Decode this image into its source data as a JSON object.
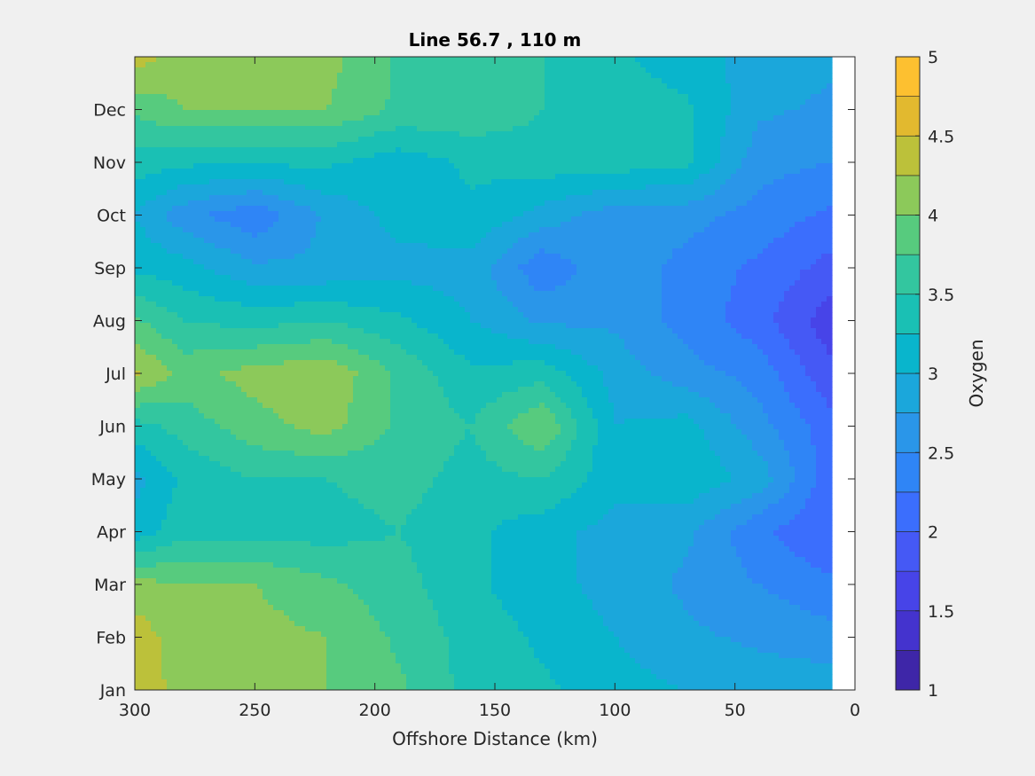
{
  "chart_data": {
    "type": "heatmap",
    "subtype": "filled-contour",
    "title": "Line 56.7 , 110 m",
    "xlabel": "Offshore Distance (km)",
    "ylabel": "",
    "x_reversed": true,
    "xlim": [
      0,
      300
    ],
    "x_ticks": [
      300,
      250,
      200,
      150,
      100,
      50,
      0
    ],
    "x_tick_labels": [
      "300",
      "250",
      "200",
      "150",
      "100",
      "50",
      "0"
    ],
    "ylim": [
      1,
      13
    ],
    "y_ticks": [
      1,
      2,
      3,
      4,
      5,
      6,
      7,
      8,
      9,
      10,
      11,
      12
    ],
    "y_tick_labels": [
      "Jan",
      "Feb",
      "Mar",
      "Apr",
      "May",
      "Jun",
      "Jul",
      "Aug",
      "Sep",
      "Oct",
      "Nov",
      "Dec"
    ],
    "no_data_x_range": [
      0,
      10
    ],
    "colorbar": {
      "label": "Oxygen",
      "range": [
        1,
        5
      ],
      "step": 0.25,
      "ticks": [
        1,
        1.5,
        2,
        2.5,
        3,
        3.5,
        4,
        4.5,
        5
      ],
      "tick_labels": [
        "1",
        "1.5",
        "2",
        "2.5",
        "3",
        "3.5",
        "4",
        "4.5",
        "5"
      ],
      "colors": [
        "#3e26a8",
        "#4433ce",
        "#4744e8",
        "#4559f5",
        "#3b6efd",
        "#2f85f6",
        "#2a96e9",
        "#1ba7db",
        "#09b5cc",
        "#1ac0b4",
        "#33c69f",
        "#57cb7e",
        "#8cc95a",
        "#bcc13a",
        "#e2b92f",
        "#fdc030",
        "#f5e523"
      ]
    },
    "x": [
      10,
      40,
      70,
      100,
      130,
      160,
      190,
      220,
      250,
      280,
      300
    ],
    "y": [
      1,
      2,
      3,
      4,
      5,
      6,
      7,
      8,
      9,
      10,
      11,
      12,
      13
    ],
    "z": [
      [
        2.9,
        2.9,
        3.0,
        3.1,
        3.3,
        3.4,
        3.8,
        4.0,
        4.1,
        4.1,
        4.5
      ],
      [
        2.6,
        2.7,
        2.8,
        3.0,
        3.2,
        3.4,
        3.7,
        4.0,
        4.1,
        4.1,
        4.4
      ],
      [
        2.3,
        2.5,
        2.7,
        2.9,
        3.1,
        3.3,
        3.6,
        3.8,
        4.0,
        4.0,
        4.1
      ],
      [
        2.0,
        2.3,
        2.8,
        2.9,
        3.1,
        3.3,
        3.5,
        3.4,
        3.4,
        3.4,
        3.1
      ],
      [
        2.1,
        2.9,
        3.2,
        3.1,
        3.5,
        3.4,
        3.6,
        3.5,
        3.5,
        3.3,
        2.9
      ],
      [
        2.1,
        2.6,
        3.1,
        3.0,
        4.0,
        3.5,
        3.7,
        4.1,
        3.9,
        3.6,
        3.4
      ],
      [
        1.8,
        2.4,
        2.6,
        2.9,
        3.4,
        3.3,
        3.7,
        4.2,
        4.1,
        3.9,
        4.3
      ],
      [
        1.6,
        2.1,
        2.4,
        2.7,
        2.7,
        3.0,
        3.3,
        3.5,
        3.4,
        3.5,
        3.8
      ],
      [
        1.9,
        2.2,
        2.4,
        2.7,
        2.3,
        2.9,
        2.9,
        2.8,
        2.8,
        3.1,
        3.2
      ],
      [
        2.2,
        2.4,
        2.6,
        2.6,
        2.9,
        3.2,
        3.1,
        2.8,
        2.3,
        2.6,
        3.0
      ],
      [
        2.5,
        2.6,
        3.3,
        3.4,
        3.4,
        3.3,
        3.1,
        3.3,
        3.3,
        3.3,
        3.4
      ],
      [
        2.7,
        2.8,
        3.3,
        3.4,
        3.5,
        3.7,
        3.7,
        4.0,
        4.0,
        4.0,
        3.8
      ],
      [
        2.8,
        2.9,
        3.1,
        3.3,
        3.5,
        3.7,
        3.7,
        4.1,
        4.1,
        4.1,
        4.4
      ]
    ]
  }
}
